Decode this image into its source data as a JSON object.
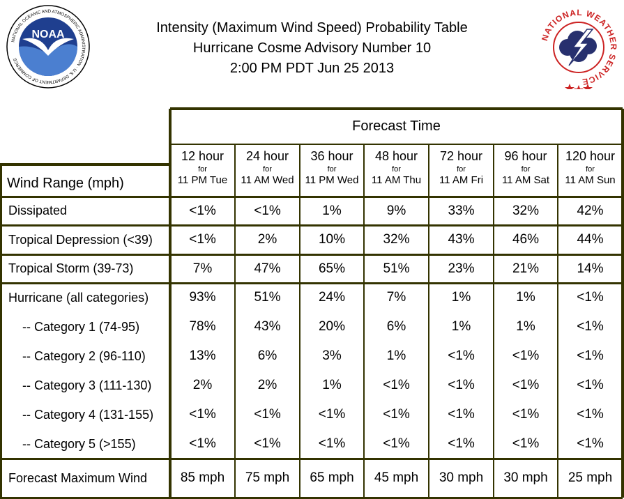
{
  "header": {
    "title_line1": "Intensity (Maximum Wind Speed) Probability Table",
    "title_line2": "Hurricane Cosme Advisory Number 10",
    "title_line3": "2:00 PM PDT Jun 25 2013"
  },
  "logos": {
    "noaa_text": "NOAA",
    "noaa_ring_text": "NATIONAL OCEANIC AND ATMOSPHERIC ADMINISTRATION · U.S. DEPARTMENT OF COMMERCE",
    "nws_ring_text": "NATIONAL WEATHER SERVICE"
  },
  "table": {
    "forecast_time_label": "Forecast Time",
    "wind_range_label": "Wind Range (mph)",
    "for_label": "for",
    "columns": [
      {
        "hour": "12 hour",
        "time": "11 PM Tue"
      },
      {
        "hour": "24 hour",
        "time": "11 AM Wed"
      },
      {
        "hour": "36 hour",
        "time": "11 PM Wed"
      },
      {
        "hour": "48 hour",
        "time": "11 AM Thu"
      },
      {
        "hour": "72 hour",
        "time": "11 AM Fri"
      },
      {
        "hour": "96 hour",
        "time": "11 AM Sat"
      },
      {
        "hour": "120 hour",
        "time": "11 AM Sun"
      }
    ],
    "rows": [
      {
        "label": "Dissipated",
        "values": [
          "<1%",
          "<1%",
          "1%",
          "9%",
          "33%",
          "32%",
          "42%"
        ]
      },
      {
        "label": "Tropical Depression (<39)",
        "values": [
          "<1%",
          "2%",
          "10%",
          "32%",
          "43%",
          "46%",
          "44%"
        ]
      },
      {
        "label": "Tropical Storm (39-73)",
        "values": [
          "7%",
          "47%",
          "65%",
          "51%",
          "23%",
          "21%",
          "14%"
        ]
      },
      {
        "label": "Hurricane (all categories)",
        "values": [
          "93%",
          "51%",
          "24%",
          "7%",
          "1%",
          "1%",
          "<1%"
        ]
      },
      {
        "label": "-- Category 1 (74-95)",
        "values": [
          "78%",
          "43%",
          "20%",
          "6%",
          "1%",
          "1%",
          "<1%"
        ]
      },
      {
        "label": "-- Category 2 (96-110)",
        "values": [
          "13%",
          "6%",
          "3%",
          "1%",
          "<1%",
          "<1%",
          "<1%"
        ]
      },
      {
        "label": "-- Category 3 (111-130)",
        "values": [
          "2%",
          "2%",
          "1%",
          "<1%",
          "<1%",
          "<1%",
          "<1%"
        ]
      },
      {
        "label": "-- Category 4 (131-155)",
        "values": [
          "<1%",
          "<1%",
          "<1%",
          "<1%",
          "<1%",
          "<1%",
          "<1%"
        ]
      },
      {
        "label": "-- Category 5 (>155)",
        "values": [
          "<1%",
          "<1%",
          "<1%",
          "<1%",
          "<1%",
          "<1%",
          "<1%"
        ]
      },
      {
        "label": "Forecast Maximum Wind",
        "values": [
          "85 mph",
          "75 mph",
          "65 mph",
          "45 mph",
          "30 mph",
          "30 mph",
          "25 mph"
        ]
      }
    ]
  },
  "colors": {
    "grid_line": "#333300",
    "noaa_blue": "#1f3f8f",
    "nws_red": "#cc2222",
    "nws_blue": "#27306e"
  }
}
